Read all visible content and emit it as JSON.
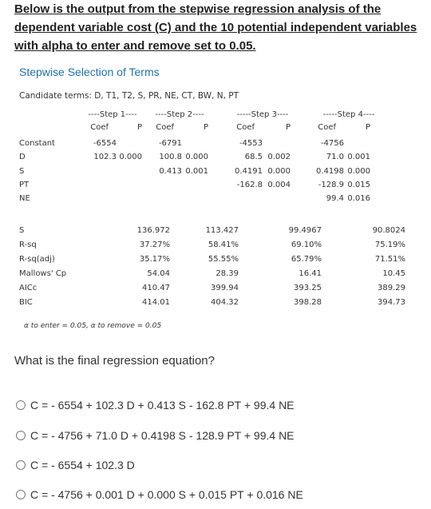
{
  "intro": "Below is the output from the stepwise regression analysis of the dependent variable cost (C) and the 10 potential independent variables with alpha to enter and remove set to 0.05.",
  "heading": "Stepwise Selection of Terms",
  "candidate_terms": "Candidate terms: D, T1, T2, S, PR, NE, CT, BW, N, PT",
  "step_headers": [
    "----Step 1----",
    "----Step 2----",
    "-----Step 3----",
    "-----Step 4----"
  ],
  "coef_label": "Coef",
  "p_label": "P",
  "term_rows": [
    {
      "label": "Constant",
      "cells": [
        [
          "-6554",
          ""
        ],
        [
          "-6791",
          ""
        ],
        [
          "-4553",
          ""
        ],
        [
          "-4756",
          ""
        ]
      ]
    },
    {
      "label": "D",
      "cells": [
        [
          "102.3",
          "0.000"
        ],
        [
          "100.8",
          "0.000"
        ],
        [
          "68.5",
          "0.002"
        ],
        [
          "71.0",
          "0.001"
        ]
      ]
    },
    {
      "label": "S",
      "cells": [
        [
          "",
          ""
        ],
        [
          "0.413",
          "0.001"
        ],
        [
          "0.4191",
          "0.000"
        ],
        [
          "0.4198",
          "0.000"
        ]
      ]
    },
    {
      "label": "PT",
      "cells": [
        [
          "",
          ""
        ],
        [
          "",
          ""
        ],
        [
          "-162.8",
          "0.004"
        ],
        [
          "-128.9",
          "0.015"
        ]
      ]
    },
    {
      "label": "NE",
      "cells": [
        [
          "",
          ""
        ],
        [
          "",
          ""
        ],
        [
          "",
          ""
        ],
        [
          "99.4",
          "0.016"
        ]
      ]
    }
  ],
  "stat_rows": [
    {
      "label": "S",
      "values": [
        "136.972",
        "113.427",
        "99.4967",
        "90.8024"
      ]
    },
    {
      "label": "R-sq",
      "values": [
        "37.27%",
        "58.41%",
        "69.10%",
        "75.19%"
      ]
    },
    {
      "label": "R-sq(adj)",
      "values": [
        "35.17%",
        "55.55%",
        "65.79%",
        "71.51%"
      ]
    },
    {
      "label": "Mallows' Cp",
      "values": [
        "54.04",
        "28.39",
        "16.41",
        "10.45"
      ]
    },
    {
      "label": "AICc",
      "values": [
        "410.47",
        "399.94",
        "393.25",
        "389.29"
      ]
    },
    {
      "label": "BIC",
      "values": [
        "414.01",
        "404.32",
        "398.28",
        "394.73"
      ]
    }
  ],
  "alpha_note": "α to enter = 0.05, α to remove = 0.05",
  "question": "What is the final regression equation?",
  "options": [
    "C = - 6554 + 102.3 D + 0.413 S - 162.8 PT + 99.4 NE",
    "C = - 4756 + 71.0 D + 0.4198 S - 128.9 PT + 99.4 NE",
    "C = - 6554 + 102.3 D",
    "C = - 4756 + 0.001 D + 0.000 S + 0.015 PT + 0.016 NE"
  ]
}
